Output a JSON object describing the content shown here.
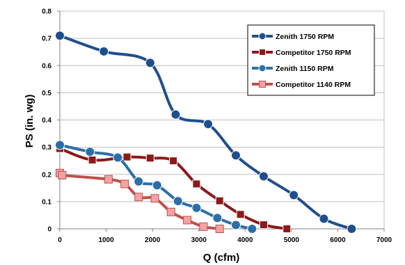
{
  "chart_data": {
    "type": "line",
    "title": "",
    "xlabel": "Q (cfm)",
    "ylabel": "PS (in. wg)",
    "xlim": [
      0,
      7000
    ],
    "ylim": [
      0,
      0.8
    ],
    "xticks": [
      0,
      1000,
      2000,
      3000,
      4000,
      5000,
      6000,
      7000
    ],
    "yticks": [
      0,
      0.1,
      0.2,
      0.3,
      0.4,
      0.5,
      0.6,
      0.7,
      0.8
    ],
    "xtick_labels": [
      "0",
      "1000",
      "2000",
      "3000",
      "4000",
      "5000",
      "6000",
      "7000"
    ],
    "ytick_labels": [
      "0",
      "0.1",
      "0.2",
      "0.3",
      "0.4",
      "0.5",
      "0.6",
      "0.7",
      "0.8"
    ],
    "grid": "horizontal",
    "legend_position": "top-right",
    "series": [
      {
        "name": "Zenith 1750 RPM",
        "color": "#1f4e8c",
        "marker": "circle",
        "x": [
          0,
          950,
          1950,
          2500,
          3200,
          3800,
          4400,
          5050,
          5700,
          6300
        ],
        "y": [
          0.71,
          0.652,
          0.61,
          0.42,
          0.385,
          0.27,
          0.193,
          0.124,
          0.037,
          0.0
        ]
      },
      {
        "name": "Competitor 1750 RPM",
        "color": "#8b1a1a",
        "marker": "square",
        "x": [
          0,
          700,
          1450,
          1950,
          2450,
          2950,
          3450,
          3900,
          4400,
          4900
        ],
        "y": [
          0.295,
          0.253,
          0.264,
          0.26,
          0.25,
          0.165,
          0.103,
          0.053,
          0.015,
          0.0
        ]
      },
      {
        "name": "Zenith 1150 RPM",
        "color": "#2c6fa8",
        "marker": "circle",
        "x": [
          0,
          650,
          1250,
          1700,
          2100,
          2550,
          2950,
          3400,
          3800,
          4150
        ],
        "y": [
          0.308,
          0.283,
          0.262,
          0.174,
          0.16,
          0.102,
          0.077,
          0.04,
          0.014,
          0.0
        ]
      },
      {
        "name": "Competitor 1140 RPM",
        "color": "#c0504d",
        "fill": "#f2a3a3",
        "marker": "square",
        "x": [
          0,
          50,
          1050,
          1400,
          1700,
          2050,
          2400,
          2750,
          3100,
          3450
        ],
        "y": [
          0.205,
          0.197,
          0.182,
          0.165,
          0.117,
          0.112,
          0.062,
          0.032,
          0.008,
          0.0
        ]
      }
    ]
  }
}
